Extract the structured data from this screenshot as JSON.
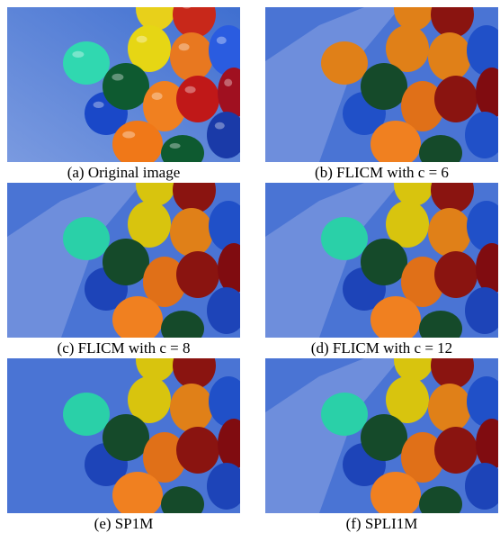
{
  "figure": {
    "panels": [
      {
        "caption": "(a) Original image"
      },
      {
        "caption": "(b) FLICM with c = 6"
      },
      {
        "caption": "(c) FLICM with c = 8"
      },
      {
        "caption": "(d) FLICM with c = 12"
      },
      {
        "caption": "(e) SP1M"
      },
      {
        "caption": "(f) SPLI1M"
      }
    ]
  }
}
